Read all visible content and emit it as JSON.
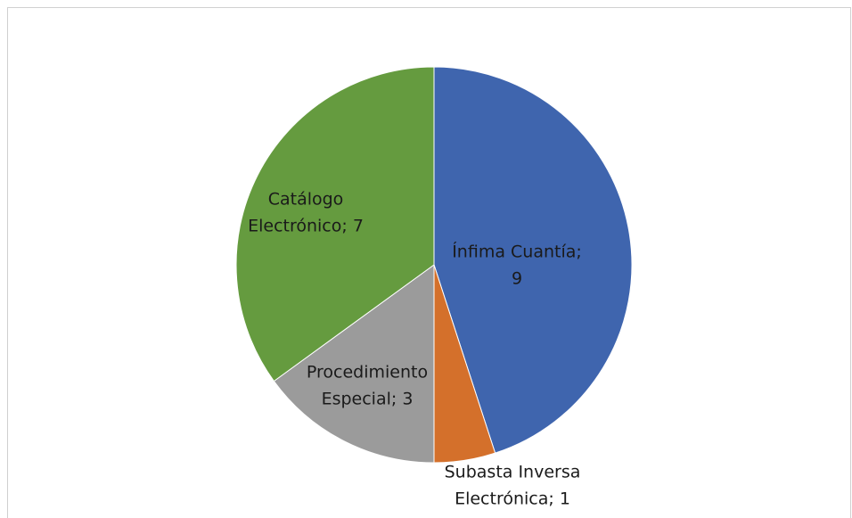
{
  "chart_data": {
    "type": "pie",
    "values": [
      9,
      1,
      3,
      7
    ],
    "value_labels": [
      [
        "Ínfima Cuantía;",
        "9"
      ],
      [
        "Subasta Inversa",
        "Electrónica; 1"
      ],
      [
        "Procedimiento",
        "Especial; 3"
      ],
      [
        "Catálogo",
        "Electrónico; 7"
      ]
    ],
    "colors": [
      "#3f65ae",
      "#d4702b",
      "#9b9b9b",
      "#659b3f"
    ]
  }
}
